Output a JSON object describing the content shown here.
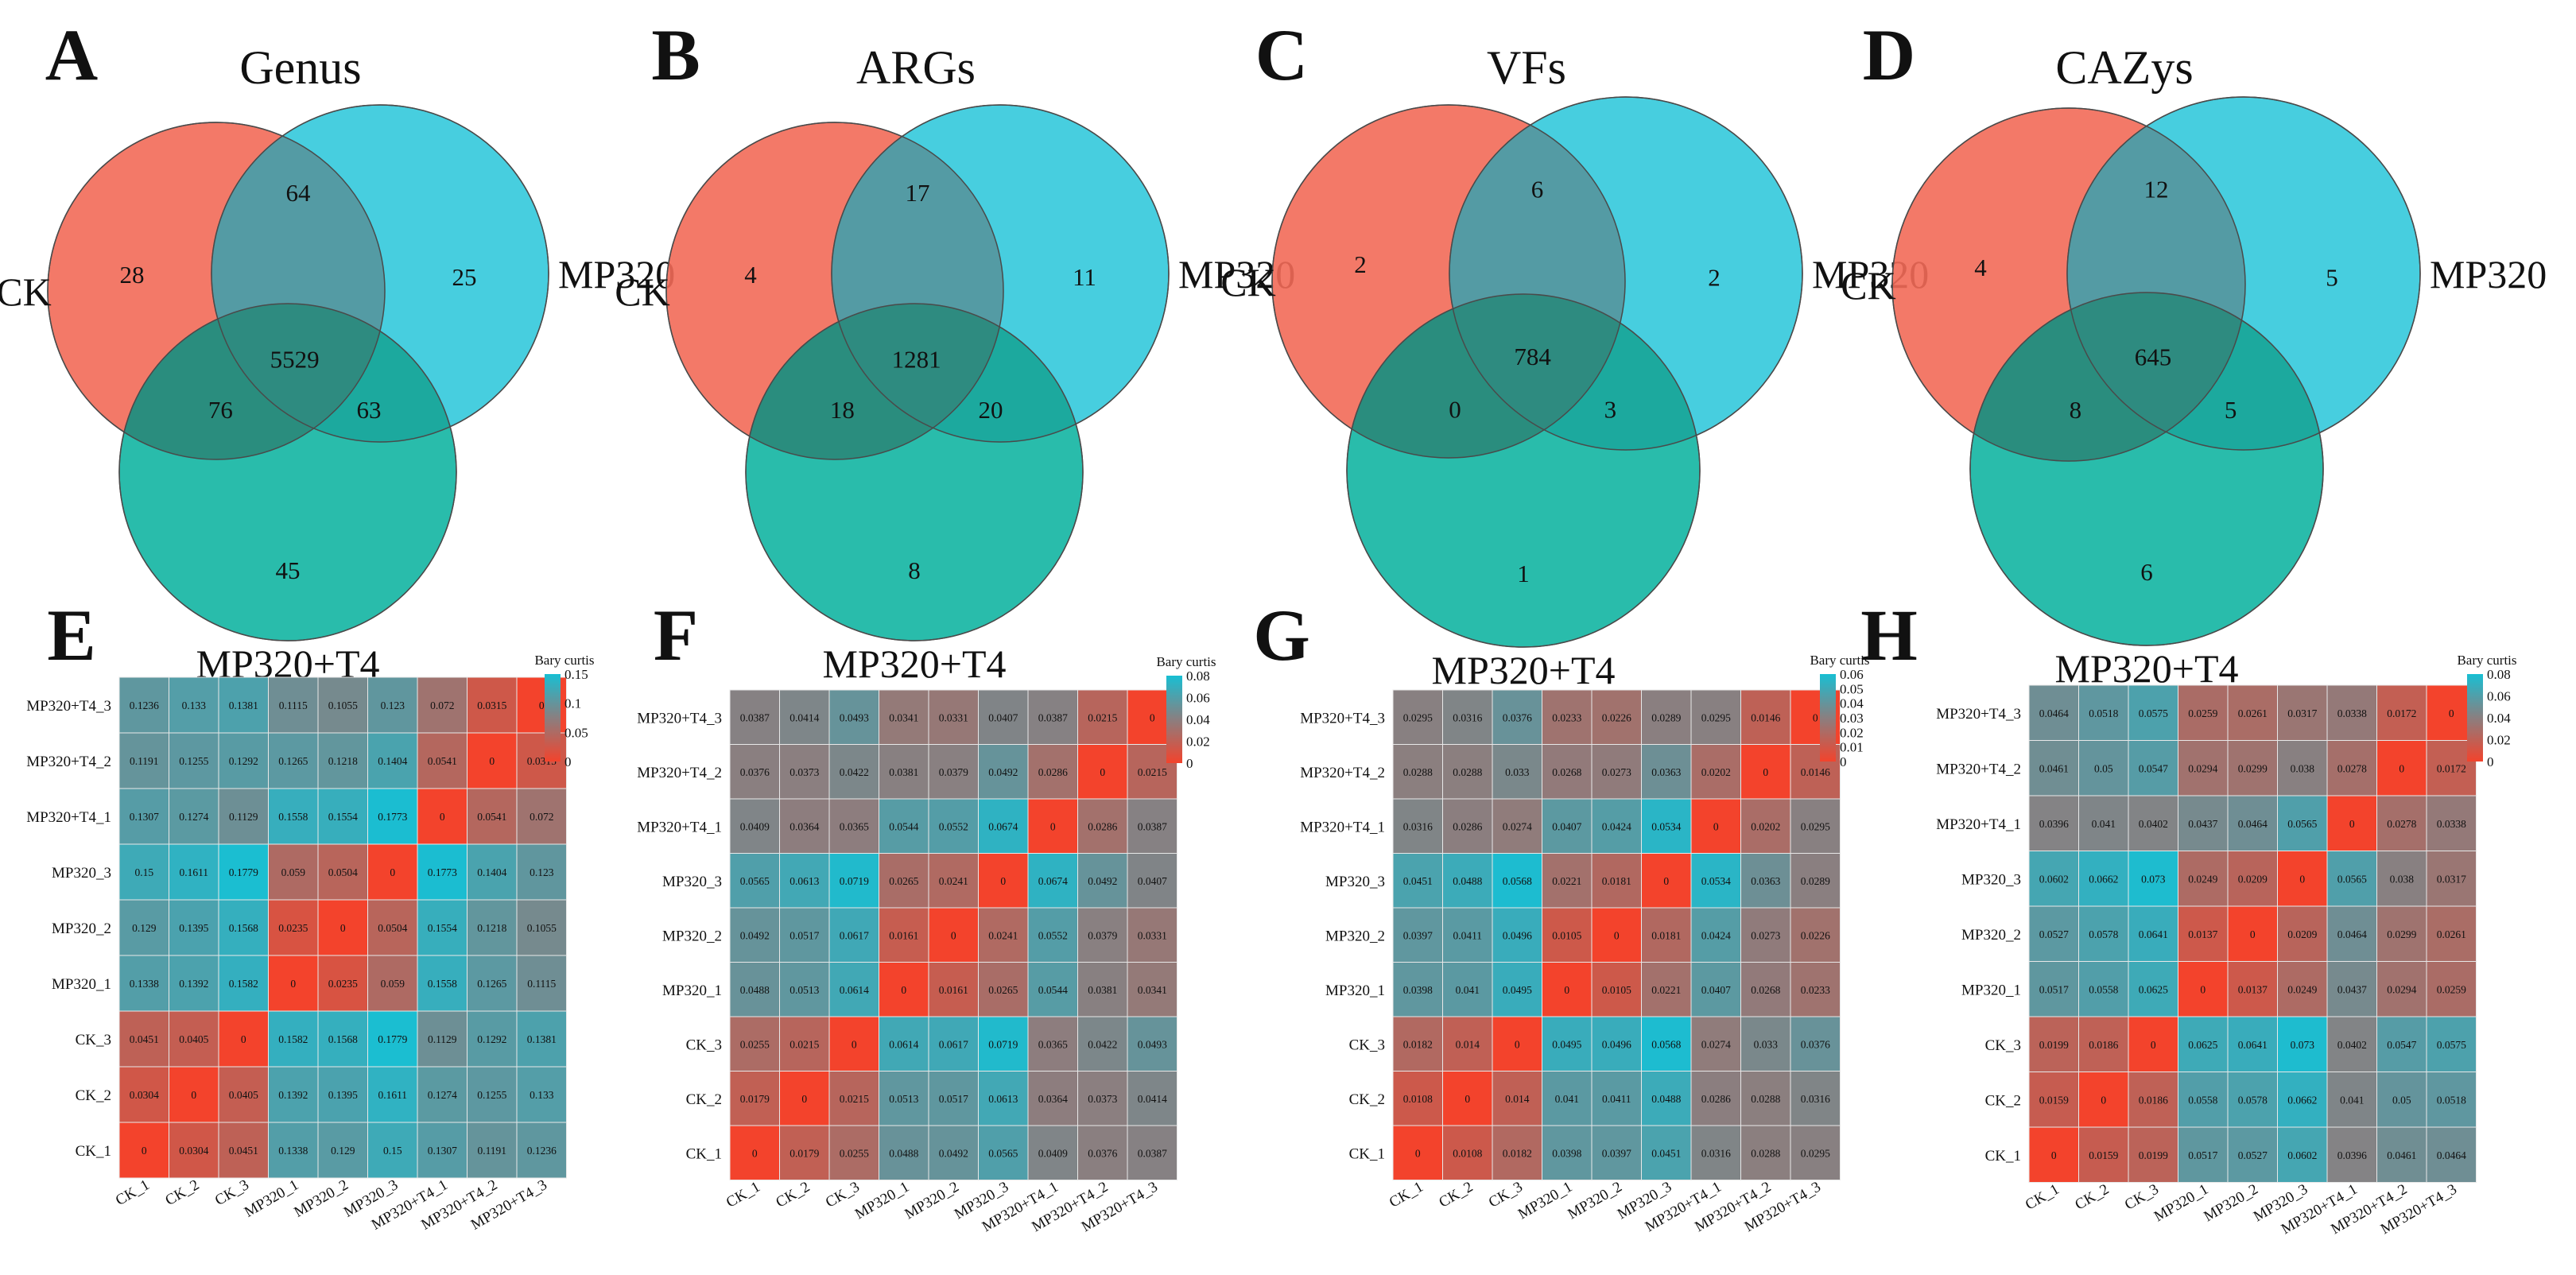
{
  "chart_data": [
    {
      "type": "venn",
      "panel": "A",
      "title": "Genus",
      "sets": [
        "CK",
        "MP320",
        "MP320+T4"
      ],
      "counts": {
        "CK_only": 28,
        "MP320_only": 25,
        "T4_only": 45,
        "CK_MP320": 64,
        "CK_T4": 76,
        "MP320_T4": 63,
        "all": 5529
      }
    },
    {
      "type": "venn",
      "panel": "B",
      "title": "ARGs",
      "sets": [
        "CK",
        "MP320",
        "MP320+T4"
      ],
      "counts": {
        "CK_only": 4,
        "MP320_only": 11,
        "T4_only": 8,
        "CK_MP320": 17,
        "CK_T4": 18,
        "MP320_T4": 20,
        "all": 1281
      }
    },
    {
      "type": "venn",
      "panel": "C",
      "title": "VFs",
      "sets": [
        "CK",
        "MP320",
        "MP320+T4"
      ],
      "counts": {
        "CK_only": 2,
        "MP320_only": 2,
        "T4_only": 1,
        "CK_MP320": 6,
        "CK_T4": 0,
        "MP320_T4": 3,
        "all": 784
      }
    },
    {
      "type": "venn",
      "panel": "D",
      "title": "CAZys",
      "sets": [
        "CK",
        "MP320",
        "MP320+T4"
      ],
      "counts": {
        "CK_only": 4,
        "MP320_only": 5,
        "T4_only": 6,
        "CK_MP320": 12,
        "CK_T4": 8,
        "MP320_T4": 5,
        "all": 645
      }
    },
    {
      "type": "heatmap",
      "panel": "E",
      "legend_title": "Bary curtis",
      "legend_ticks": [
        "0.15",
        "0.1",
        "0.05",
        "0"
      ],
      "color_max": 0.18,
      "rows": [
        "MP320+T4_3",
        "MP320+T4_2",
        "MP320+T4_1",
        "MP320_3",
        "MP320_2",
        "MP320_1",
        "CK_3",
        "CK_2",
        "CK_1"
      ],
      "cols": [
        "CK_1",
        "CK_2",
        "CK_3",
        "MP320_1",
        "MP320_2",
        "MP320_3",
        "MP320+T4_1",
        "MP320+T4_2",
        "MP320+T4_3"
      ],
      "values": [
        [
          "0.1236",
          "0.133",
          "0.1381",
          "0.1115",
          "0.1055",
          "0.123",
          "0.072",
          "0.0315",
          "0"
        ],
        [
          "0.1191",
          "0.1255",
          "0.1292",
          "0.1265",
          "0.1218",
          "0.1404",
          "0.0541",
          "0",
          "0.0315"
        ],
        [
          "0.1307",
          "0.1274",
          "0.1129",
          "0.1558",
          "0.1554",
          "0.1773",
          "0",
          "0.0541",
          "0.072"
        ],
        [
          "0.15",
          "0.1611",
          "0.1779",
          "0.059",
          "0.0504",
          "0",
          "0.1773",
          "0.1404",
          "0.123"
        ],
        [
          "0.129",
          "0.1395",
          "0.1568",
          "0.0235",
          "0",
          "0.0504",
          "0.1554",
          "0.1218",
          "0.1055"
        ],
        [
          "0.1338",
          "0.1392",
          "0.1582",
          "0",
          "0.0235",
          "0.059",
          "0.1558",
          "0.1265",
          "0.1115"
        ],
        [
          "0.0451",
          "0.0405",
          "0",
          "0.1582",
          "0.1568",
          "0.1779",
          "0.1129",
          "0.1292",
          "0.1381"
        ],
        [
          "0.0304",
          "0",
          "0.0405",
          "0.1392",
          "0.1395",
          "0.1611",
          "0.1274",
          "0.1255",
          "0.133"
        ],
        [
          "0",
          "0.0304",
          "0.0451",
          "0.1338",
          "0.129",
          "0.15",
          "0.1307",
          "0.1191",
          "0.1236"
        ]
      ]
    },
    {
      "type": "heatmap",
      "panel": "F",
      "legend_title": "Bary curtis",
      "legend_ticks": [
        "0.08",
        "0.06",
        "0.04",
        "0.02",
        "0"
      ],
      "color_max": 0.075,
      "rows": [
        "MP320+T4_3",
        "MP320+T4_2",
        "MP320+T4_1",
        "MP320_3",
        "MP320_2",
        "MP320_1",
        "CK_3",
        "CK_2",
        "CK_1"
      ],
      "cols": [
        "CK_1",
        "CK_2",
        "CK_3",
        "MP320_1",
        "MP320_2",
        "MP320_3",
        "MP320+T4_1",
        "MP320+T4_2",
        "MP320+T4_3"
      ],
      "values": [
        [
          "0.0387",
          "0.0414",
          "0.0493",
          "0.0341",
          "0.0331",
          "0.0407",
          "0.0387",
          "0.0215",
          "0"
        ],
        [
          "0.0376",
          "0.0373",
          "0.0422",
          "0.0381",
          "0.0379",
          "0.0492",
          "0.0286",
          "0",
          "0.0215"
        ],
        [
          "0.0409",
          "0.0364",
          "0.0365",
          "0.0544",
          "0.0552",
          "0.0674",
          "0",
          "0.0286",
          "0.0387"
        ],
        [
          "0.0565",
          "0.0613",
          "0.0719",
          "0.0265",
          "0.0241",
          "0",
          "0.0674",
          "0.0492",
          "0.0407"
        ],
        [
          "0.0492",
          "0.0517",
          "0.0617",
          "0.0161",
          "0",
          "0.0241",
          "0.0552",
          "0.0379",
          "0.0331"
        ],
        [
          "0.0488",
          "0.0513",
          "0.0614",
          "0",
          "0.0161",
          "0.0265",
          "0.0544",
          "0.0381",
          "0.0341"
        ],
        [
          "0.0255",
          "0.0215",
          "0",
          "0.0614",
          "0.0617",
          "0.0719",
          "0.0365",
          "0.0422",
          "0.0493"
        ],
        [
          "0.0179",
          "0",
          "0.0215",
          "0.0513",
          "0.0517",
          "0.0613",
          "0.0364",
          "0.0373",
          "0.0414"
        ],
        [
          "0",
          "0.0179",
          "0.0255",
          "0.0488",
          "0.0492",
          "0.0565",
          "0.0409",
          "0.0376",
          "0.0387"
        ]
      ]
    },
    {
      "type": "heatmap",
      "panel": "G",
      "legend_title": "Bary curtis",
      "legend_ticks": [
        "0.06",
        "0.05",
        "0.04",
        "0.03",
        "0.02",
        "0.01",
        "0"
      ],
      "color_max": 0.058,
      "rows": [
        "MP320+T4_3",
        "MP320+T4_2",
        "MP320+T4_1",
        "MP320_3",
        "MP320_2",
        "MP320_1",
        "CK_3",
        "CK_2",
        "CK_1"
      ],
      "cols": [
        "CK_1",
        "CK_2",
        "CK_3",
        "MP320_1",
        "MP320_2",
        "MP320_3",
        "MP320+T4_1",
        "MP320+T4_2",
        "MP320+T4_3"
      ],
      "values": [
        [
          "0.0295",
          "0.0316",
          "0.0376",
          "0.0233",
          "0.0226",
          "0.0289",
          "0.0295",
          "0.0146",
          "0"
        ],
        [
          "0.0288",
          "0.0288",
          "0.033",
          "0.0268",
          "0.0273",
          "0.0363",
          "0.0202",
          "0",
          "0.0146"
        ],
        [
          "0.0316",
          "0.0286",
          "0.0274",
          "0.0407",
          "0.0424",
          "0.0534",
          "0",
          "0.0202",
          "0.0295"
        ],
        [
          "0.0451",
          "0.0488",
          "0.0568",
          "0.0221",
          "0.0181",
          "0",
          "0.0534",
          "0.0363",
          "0.0289"
        ],
        [
          "0.0397",
          "0.0411",
          "0.0496",
          "0.0105",
          "0",
          "0.0181",
          "0.0424",
          "0.0273",
          "0.0226"
        ],
        [
          "0.0398",
          "0.041",
          "0.0495",
          "0",
          "0.0105",
          "0.0221",
          "0.0407",
          "0.0268",
          "0.0233"
        ],
        [
          "0.0182",
          "0.014",
          "0",
          "0.0495",
          "0.0496",
          "0.0568",
          "0.0274",
          "0.033",
          "0.0376"
        ],
        [
          "0.0108",
          "0",
          "0.014",
          "0.041",
          "0.0411",
          "0.0488",
          "0.0286",
          "0.0288",
          "0.0316"
        ],
        [
          "0",
          "0.0108",
          "0.0182",
          "0.0398",
          "0.0397",
          "0.0451",
          "0.0316",
          "0.0288",
          "0.0295"
        ]
      ]
    },
    {
      "type": "heatmap",
      "panel": "H",
      "legend_title": "Bary curtis",
      "legend_ticks": [
        "0.08",
        "0.06",
        "0.04",
        "0.02",
        "0"
      ],
      "color_max": 0.075,
      "rows": [
        "MP320+T4_3",
        "MP320+T4_2",
        "MP320+T4_1",
        "MP320_3",
        "MP320_2",
        "MP320_1",
        "CK_3",
        "CK_2",
        "CK_1"
      ],
      "cols": [
        "CK_1",
        "CK_2",
        "CK_3",
        "MP320_1",
        "MP320_2",
        "MP320_3",
        "MP320+T4_1",
        "MP320+T4_2",
        "MP320+T4_3"
      ],
      "values": [
        [
          "0.0464",
          "0.0518",
          "0.0575",
          "0.0259",
          "0.0261",
          "0.0317",
          "0.0338",
          "0.0172",
          "0"
        ],
        [
          "0.0461",
          "0.05",
          "0.0547",
          "0.0294",
          "0.0299",
          "0.038",
          "0.0278",
          "0",
          "0.0172"
        ],
        [
          "0.0396",
          "0.041",
          "0.0402",
          "0.0437",
          "0.0464",
          "0.0565",
          "0",
          "0.0278",
          "0.0338"
        ],
        [
          "0.0602",
          "0.0662",
          "0.073",
          "0.0249",
          "0.0209",
          "0",
          "0.0565",
          "0.038",
          "0.0317"
        ],
        [
          "0.0527",
          "0.0578",
          "0.0641",
          "0.0137",
          "0",
          "0.0209",
          "0.0464",
          "0.0299",
          "0.0261"
        ],
        [
          "0.0517",
          "0.0558",
          "0.0625",
          "0",
          "0.0137",
          "0.0249",
          "0.0437",
          "0.0294",
          "0.0259"
        ],
        [
          "0.0199",
          "0.0186",
          "0",
          "0.0625",
          "0.0641",
          "0.073",
          "0.0402",
          "0.0547",
          "0.0575"
        ],
        [
          "0.0159",
          "0",
          "0.0186",
          "0.0558",
          "0.0578",
          "0.0662",
          "0.041",
          "0.05",
          "0.0518"
        ],
        [
          "0",
          "0.0159",
          "0.0199",
          "0.0517",
          "0.0527",
          "0.0602",
          "0.0396",
          "0.0461",
          "0.0464"
        ]
      ]
    }
  ],
  "colors": {
    "ck": "#f26a58",
    "mp320": "#33c9dc",
    "t4": "#12b5a2",
    "heat_low": "#f3432c",
    "heat_mid": "#8a7f80",
    "heat_high": "#18bfd3"
  }
}
